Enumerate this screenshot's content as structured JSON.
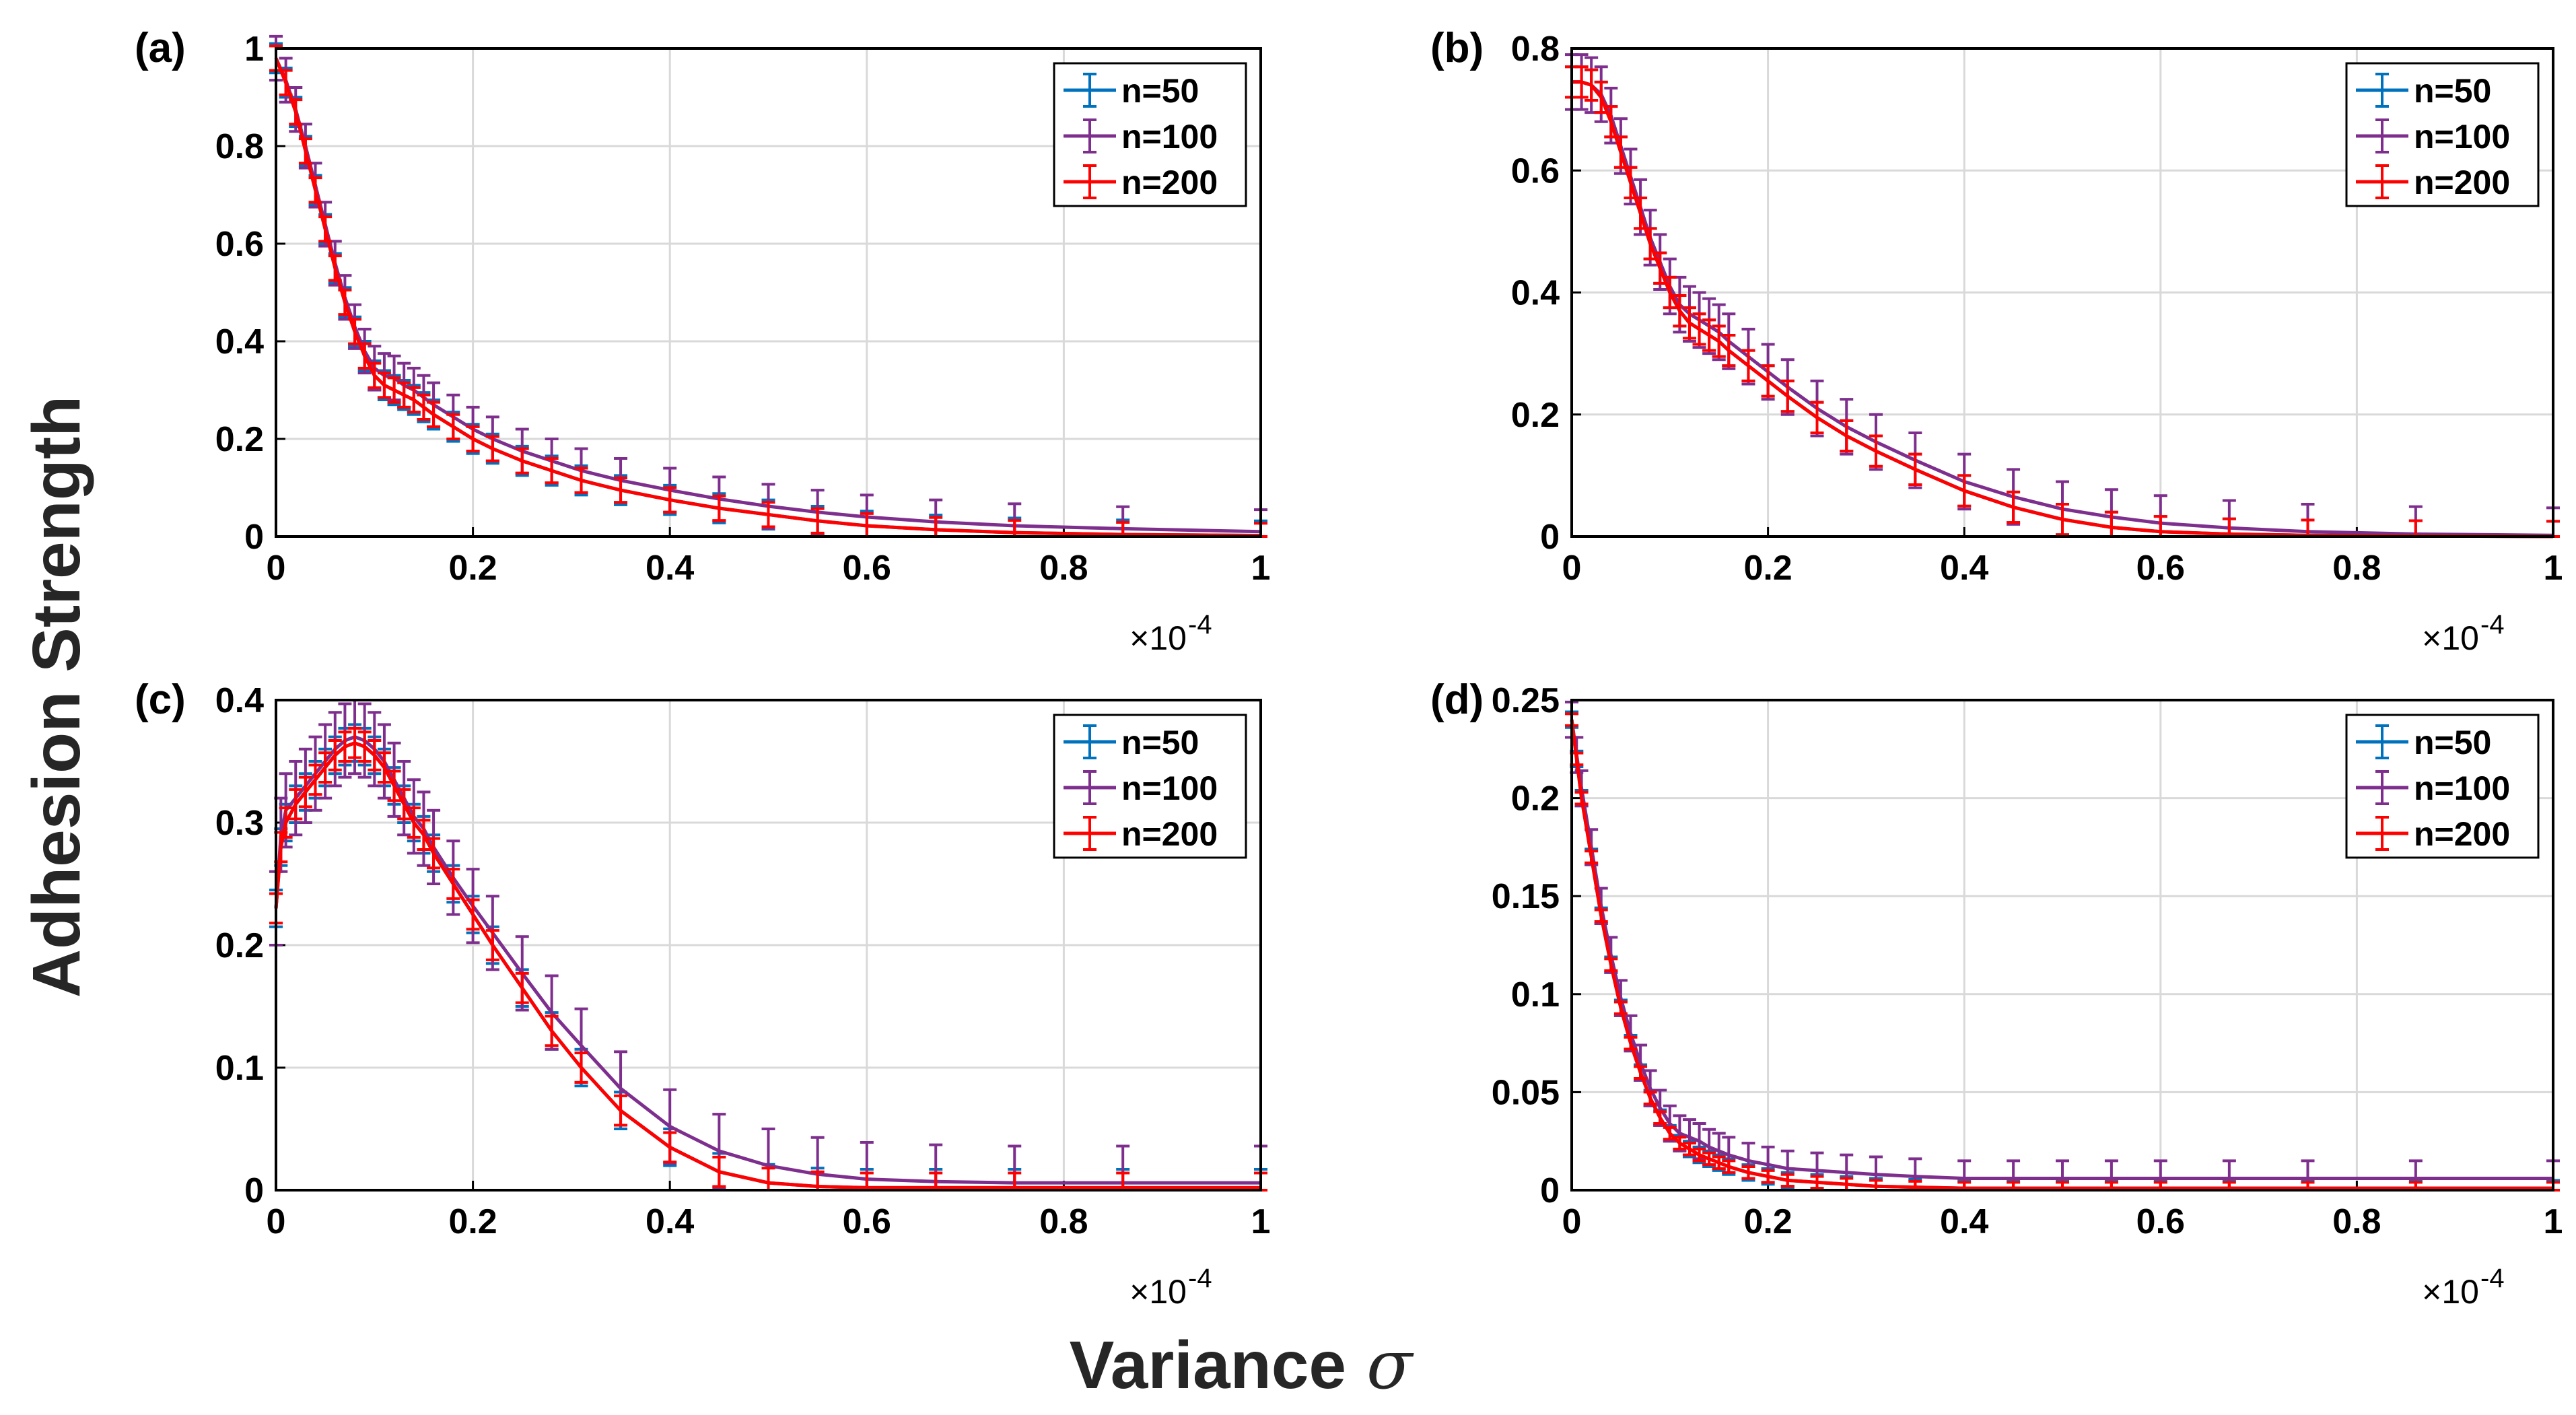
{
  "figure": {
    "ylabel": "Adhesion Strength",
    "xlabel": "Variance",
    "xlabel_symbol": "σ",
    "exponent_base": "×10",
    "exponent_power": "-4"
  },
  "colors": {
    "n50": "#0072BD",
    "n100": "#7E2F8E",
    "n200": "#FF0000",
    "grid": "#d9d9d9",
    "axis": "#000000"
  },
  "chart_data": [
    {
      "type": "line",
      "panel": "(a)",
      "xlabel": "Variance σ",
      "ylabel": "Adhesion Strength",
      "xlim": [
        0,
        1
      ],
      "ylim": [
        0,
        1
      ],
      "x_multiplier": "×10^-4",
      "xticks": [
        "0",
        "0.2",
        "0.4",
        "0.6",
        "0.8",
        "1"
      ],
      "yticks": [
        "0",
        "0.2",
        "0.4",
        "0.6",
        "0.8",
        "1"
      ],
      "ytick_values": [
        0,
        0.2,
        0.4,
        0.6,
        0.8,
        1
      ],
      "legend": [
        "n=50",
        "n=100",
        "n=200"
      ],
      "legend_position": "top-right",
      "x": [
        0.0,
        0.01,
        0.02,
        0.03,
        0.04,
        0.05,
        0.06,
        0.07,
        0.08,
        0.09,
        0.1,
        0.11,
        0.12,
        0.13,
        0.14,
        0.15,
        0.16,
        0.18,
        0.2,
        0.22,
        0.25,
        0.28,
        0.31,
        0.35,
        0.4,
        0.45,
        0.5,
        0.55,
        0.6,
        0.67,
        0.75,
        0.86,
        1.0
      ],
      "series": [
        {
          "name": "n=50",
          "values": [
            0.98,
            0.93,
            0.87,
            0.79,
            0.71,
            0.63,
            0.55,
            0.48,
            0.42,
            0.37,
            0.33,
            0.31,
            0.3,
            0.29,
            0.28,
            0.265,
            0.25,
            0.225,
            0.2,
            0.18,
            0.155,
            0.135,
            0.115,
            0.095,
            0.075,
            0.058,
            0.045,
            0.032,
            0.022,
            0.014,
            0.008,
            0.004,
            0.002
          ],
          "err": 0.03
        },
        {
          "name": "n=100",
          "values": [
            0.98,
            0.935,
            0.875,
            0.8,
            0.72,
            0.64,
            0.56,
            0.49,
            0.43,
            0.38,
            0.345,
            0.33,
            0.325,
            0.31,
            0.3,
            0.285,
            0.27,
            0.245,
            0.22,
            0.2,
            0.175,
            0.155,
            0.135,
            0.115,
            0.095,
            0.077,
            0.062,
            0.05,
            0.04,
            0.03,
            0.022,
            0.016,
            0.01
          ],
          "err": 0.045
        },
        {
          "name": "n=200",
          "values": [
            0.98,
            0.93,
            0.87,
            0.79,
            0.71,
            0.63,
            0.55,
            0.48,
            0.42,
            0.37,
            0.33,
            0.31,
            0.3,
            0.29,
            0.28,
            0.265,
            0.25,
            0.225,
            0.2,
            0.18,
            0.155,
            0.135,
            0.115,
            0.095,
            0.075,
            0.058,
            0.045,
            0.032,
            0.022,
            0.014,
            0.008,
            0.004,
            0.002
          ],
          "err": 0.025
        }
      ]
    },
    {
      "type": "line",
      "panel": "(b)",
      "xlabel": "Variance σ",
      "ylabel": "Adhesion Strength",
      "xlim": [
        0,
        1
      ],
      "ylim": [
        0,
        0.8
      ],
      "x_multiplier": "×10^-4",
      "xticks": [
        "0",
        "0.2",
        "0.4",
        "0.6",
        "0.8",
        "1"
      ],
      "yticks": [
        "0",
        "0.2",
        "0.4",
        "0.6",
        "0.8"
      ],
      "ytick_values": [
        0,
        0.2,
        0.4,
        0.6,
        0.8
      ],
      "legend": [
        "n=50",
        "n=100",
        "n=200"
      ],
      "legend_position": "top-right",
      "x": [
        0.0,
        0.01,
        0.02,
        0.03,
        0.04,
        0.05,
        0.06,
        0.07,
        0.08,
        0.09,
        0.1,
        0.11,
        0.12,
        0.13,
        0.14,
        0.15,
        0.16,
        0.18,
        0.2,
        0.22,
        0.25,
        0.28,
        0.31,
        0.35,
        0.4,
        0.45,
        0.5,
        0.55,
        0.6,
        0.67,
        0.75,
        0.86,
        1.0
      ],
      "series": [
        {
          "name": "n=50",
          "values": [
            0.745,
            0.745,
            0.74,
            0.72,
            0.68,
            0.63,
            0.58,
            0.53,
            0.48,
            0.44,
            0.4,
            0.37,
            0.35,
            0.34,
            0.33,
            0.32,
            0.305,
            0.28,
            0.255,
            0.23,
            0.195,
            0.165,
            0.14,
            0.11,
            0.075,
            0.048,
            0.028,
            0.015,
            0.008,
            0.004,
            0.002,
            0.001,
            0.0
          ],
          "err": 0.025
        },
        {
          "name": "n=100",
          "values": [
            0.745,
            0.745,
            0.74,
            0.725,
            0.69,
            0.64,
            0.59,
            0.54,
            0.49,
            0.45,
            0.41,
            0.38,
            0.365,
            0.355,
            0.345,
            0.335,
            0.32,
            0.295,
            0.27,
            0.245,
            0.21,
            0.18,
            0.155,
            0.125,
            0.09,
            0.065,
            0.045,
            0.032,
            0.022,
            0.014,
            0.008,
            0.004,
            0.002
          ],
          "err": 0.045
        },
        {
          "name": "n=200",
          "values": [
            0.745,
            0.745,
            0.74,
            0.72,
            0.68,
            0.63,
            0.58,
            0.53,
            0.48,
            0.44,
            0.4,
            0.37,
            0.35,
            0.34,
            0.33,
            0.32,
            0.305,
            0.28,
            0.255,
            0.23,
            0.195,
            0.165,
            0.14,
            0.11,
            0.075,
            0.048,
            0.028,
            0.015,
            0.008,
            0.004,
            0.002,
            0.001,
            0.0
          ],
          "err": 0.025
        }
      ]
    },
    {
      "type": "line",
      "panel": "(c)",
      "xlabel": "Variance σ",
      "ylabel": "Adhesion Strength",
      "xlim": [
        0,
        1
      ],
      "ylim": [
        0,
        0.4
      ],
      "x_multiplier": "×10^-4",
      "xticks": [
        "0",
        "0.2",
        "0.4",
        "0.6",
        "0.8",
        "1"
      ],
      "yticks": [
        "0",
        "0.1",
        "0.2",
        "0.3",
        "0.4"
      ],
      "ytick_values": [
        0,
        0.1,
        0.2,
        0.3,
        0.4
      ],
      "legend": [
        "n=50",
        "n=100",
        "n=200"
      ],
      "legend_position": "top-right",
      "x": [
        0.0,
        0.005,
        0.01,
        0.02,
        0.03,
        0.04,
        0.05,
        0.06,
        0.07,
        0.08,
        0.09,
        0.1,
        0.11,
        0.12,
        0.13,
        0.14,
        0.15,
        0.16,
        0.18,
        0.2,
        0.22,
        0.25,
        0.28,
        0.31,
        0.35,
        0.4,
        0.45,
        0.5,
        0.55,
        0.6,
        0.67,
        0.75,
        0.86,
        1.0
      ],
      "series": [
        {
          "name": "n=50",
          "values": [
            0.23,
            0.28,
            0.3,
            0.315,
            0.325,
            0.335,
            0.345,
            0.355,
            0.362,
            0.365,
            0.362,
            0.355,
            0.345,
            0.33,
            0.315,
            0.3,
            0.29,
            0.275,
            0.25,
            0.225,
            0.2,
            0.165,
            0.13,
            0.1,
            0.065,
            0.035,
            0.015,
            0.006,
            0.003,
            0.002,
            0.002,
            0.002,
            0.002,
            0.002
          ],
          "err": 0.015
        },
        {
          "name": "n=100",
          "values": [
            0.23,
            0.29,
            0.31,
            0.32,
            0.33,
            0.34,
            0.35,
            0.36,
            0.367,
            0.37,
            0.367,
            0.36,
            0.35,
            0.335,
            0.32,
            0.305,
            0.295,
            0.28,
            0.255,
            0.232,
            0.21,
            0.177,
            0.145,
            0.118,
            0.083,
            0.052,
            0.032,
            0.02,
            0.013,
            0.009,
            0.007,
            0.006,
            0.006,
            0.006
          ],
          "err": 0.03
        },
        {
          "name": "n=200",
          "values": [
            0.23,
            0.28,
            0.3,
            0.315,
            0.325,
            0.335,
            0.345,
            0.355,
            0.362,
            0.365,
            0.362,
            0.355,
            0.345,
            0.33,
            0.315,
            0.3,
            0.29,
            0.275,
            0.25,
            0.225,
            0.2,
            0.165,
            0.13,
            0.1,
            0.065,
            0.035,
            0.015,
            0.006,
            0.003,
            0.002,
            0.002,
            0.002,
            0.002,
            0.002
          ],
          "err": 0.012
        }
      ]
    },
    {
      "type": "line",
      "panel": "(d)",
      "xlabel": "Variance σ",
      "ylabel": "Adhesion Strength",
      "xlim": [
        0,
        1
      ],
      "ylim": [
        0,
        0.25
      ],
      "x_multiplier": "×10^-4",
      "xticks": [
        "0",
        "0.2",
        "0.4",
        "0.6",
        "0.8",
        "1"
      ],
      "yticks": [
        "0",
        "0.05",
        "0.1",
        "0.15",
        "0.2",
        "0.25"
      ],
      "ytick_values": [
        0,
        0.05,
        0.1,
        0.15,
        0.2,
        0.25
      ],
      "legend": [
        "n=50",
        "n=100",
        "n=200"
      ],
      "legend_position": "top-right",
      "x": [
        0.0,
        0.005,
        0.01,
        0.02,
        0.03,
        0.04,
        0.05,
        0.06,
        0.07,
        0.08,
        0.09,
        0.1,
        0.11,
        0.12,
        0.13,
        0.14,
        0.15,
        0.16,
        0.18,
        0.2,
        0.22,
        0.25,
        0.28,
        0.31,
        0.35,
        0.4,
        0.45,
        0.5,
        0.55,
        0.6,
        0.67,
        0.75,
        0.86,
        1.0
      ],
      "series": [
        {
          "name": "n=50",
          "values": [
            0.24,
            0.22,
            0.2,
            0.17,
            0.14,
            0.115,
            0.093,
            0.075,
            0.06,
            0.047,
            0.037,
            0.029,
            0.024,
            0.021,
            0.018,
            0.016,
            0.014,
            0.012,
            0.009,
            0.007,
            0.005,
            0.004,
            0.003,
            0.002,
            0.0015,
            0.001,
            0.001,
            0.001,
            0.001,
            0.001,
            0.001,
            0.001,
            0.001,
            0.001
          ],
          "err": 0.004
        },
        {
          "name": "n=100",
          "values": [
            0.24,
            0.222,
            0.205,
            0.175,
            0.145,
            0.12,
            0.098,
            0.08,
            0.065,
            0.052,
            0.042,
            0.034,
            0.029,
            0.027,
            0.025,
            0.022,
            0.02,
            0.018,
            0.015,
            0.013,
            0.011,
            0.01,
            0.009,
            0.008,
            0.007,
            0.006,
            0.006,
            0.006,
            0.006,
            0.006,
            0.006,
            0.006,
            0.006,
            0.006
          ],
          "err": 0.009
        },
        {
          "name": "n=200",
          "values": [
            0.24,
            0.22,
            0.2,
            0.17,
            0.14,
            0.115,
            0.093,
            0.075,
            0.06,
            0.047,
            0.037,
            0.029,
            0.024,
            0.021,
            0.018,
            0.016,
            0.014,
            0.012,
            0.009,
            0.007,
            0.005,
            0.004,
            0.003,
            0.002,
            0.0015,
            0.001,
            0.001,
            0.001,
            0.001,
            0.001,
            0.001,
            0.001,
            0.001,
            0.001
          ],
          "err": 0.003
        }
      ]
    }
  ]
}
